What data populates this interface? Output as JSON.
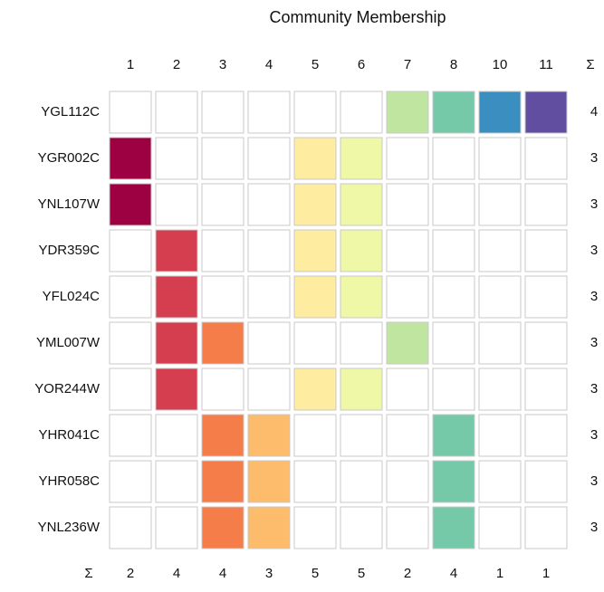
{
  "chart_data": {
    "type": "membership",
    "title": "Community Membership",
    "sum_label": "Σ",
    "columns": [
      "1",
      "2",
      "3",
      "4",
      "5",
      "6",
      "7",
      "8",
      "10",
      "11"
    ],
    "colors": [
      "#9e0142",
      "#d53e4f",
      "#f47d4a",
      "#fdbb6c",
      "#feeca0",
      "#eff8a6",
      "#bfe5a0",
      "#75c9a8",
      "#3a8fc0",
      "#614ea0"
    ],
    "rows": [
      "YGL112C",
      "YGR002C",
      "YNL107W",
      "YDR359C",
      "YFL024C",
      "YML007W",
      "YOR244W",
      "YHR041C",
      "YHR058C",
      "YNL236W"
    ],
    "membership": [
      [
        0,
        0,
        0,
        0,
        0,
        0,
        1,
        1,
        1,
        1
      ],
      [
        1,
        0,
        0,
        0,
        1,
        1,
        0,
        0,
        0,
        0
      ],
      [
        1,
        0,
        0,
        0,
        1,
        1,
        0,
        0,
        0,
        0
      ],
      [
        0,
        1,
        0,
        0,
        1,
        1,
        0,
        0,
        0,
        0
      ],
      [
        0,
        1,
        0,
        0,
        1,
        1,
        0,
        0,
        0,
        0
      ],
      [
        0,
        1,
        1,
        0,
        0,
        0,
        1,
        0,
        0,
        0
      ],
      [
        0,
        1,
        0,
        0,
        1,
        1,
        0,
        0,
        0,
        0
      ],
      [
        0,
        0,
        1,
        1,
        0,
        0,
        0,
        1,
        0,
        0
      ],
      [
        0,
        0,
        1,
        1,
        0,
        0,
        0,
        1,
        0,
        0
      ],
      [
        0,
        0,
        1,
        1,
        0,
        0,
        0,
        1,
        0,
        0
      ]
    ],
    "row_sums": [
      4,
      3,
      3,
      3,
      3,
      3,
      3,
      3,
      3,
      3
    ],
    "col_sums": [
      2,
      4,
      4,
      3,
      5,
      5,
      2,
      4,
      1,
      1
    ]
  }
}
